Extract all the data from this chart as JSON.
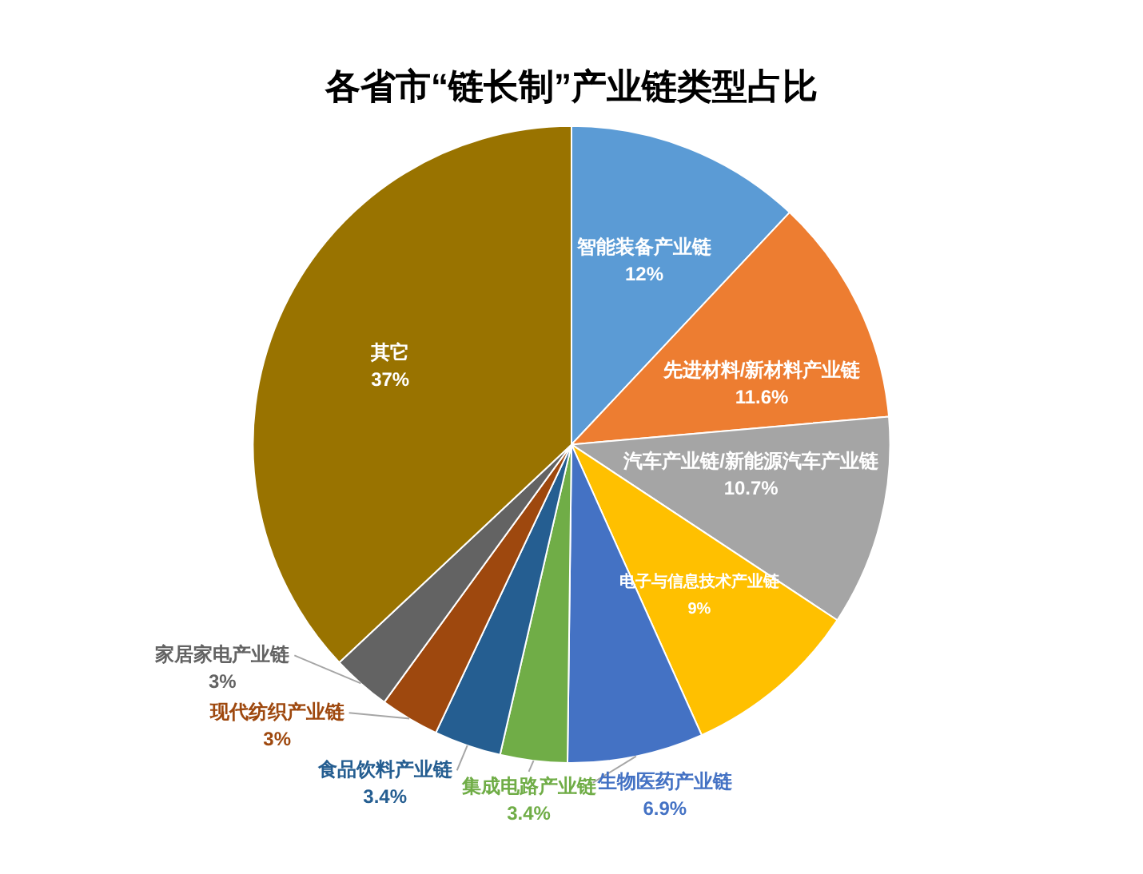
{
  "chart_data": {
    "type": "pie",
    "title": "各省市“链长制”产业链类型占比",
    "categories": [
      "智能装备产业链",
      "先进材料/新材料产业链",
      "汽车产业链/新能源汽车产业链",
      "电子与信息技术产业链",
      "生物医药产业链",
      "集成电路产业链",
      "食品饮料产业链",
      "现代纺织产业链",
      "家居家电产业链",
      "其它"
    ],
    "values": [
      12,
      11.6,
      10.7,
      9,
      6.9,
      3.4,
      3.4,
      3,
      3,
      37
    ],
    "colors": [
      "#5b9bd5",
      "#ed7d31",
      "#a5a5a5",
      "#ffc000",
      "#4472c4",
      "#70ad47",
      "#255e91",
      "#9e480e",
      "#636363",
      "#997300"
    ],
    "value_labels": [
      "12%",
      "11.6%",
      "10.7%",
      "9%",
      "6.9%",
      "3.4%",
      "3.4%",
      "3%",
      "3%",
      "37%"
    ]
  }
}
